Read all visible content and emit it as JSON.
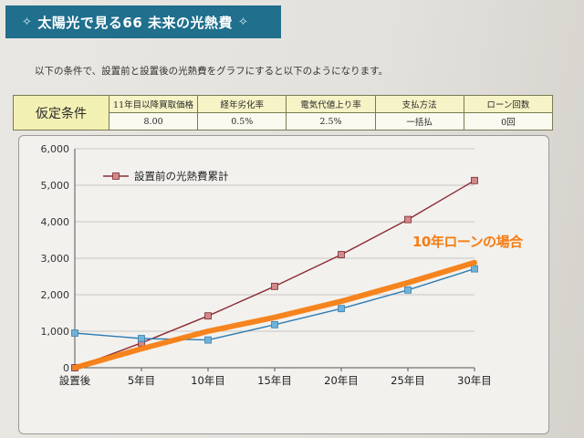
{
  "header": {
    "title": "太陽光で見る66 未来の光熱費",
    "left_ornament": "✧",
    "right_ornament": "✧"
  },
  "intro_text": "以下の条件で、設置前と設置後の光熱費をグラフにすると以下のようになります。",
  "conditions": {
    "label": "仮定条件",
    "headers": [
      "11年目以降買取価格",
      "経年劣化率",
      "電気代値上り率",
      "支払方法",
      "ローン回数"
    ],
    "values": [
      "8.00",
      "0.5%",
      "2.5%",
      "一括払",
      "0回"
    ]
  },
  "callout": "10年ローンの場合",
  "colors": {
    "header_bg": "#1f6f8d",
    "before_line": "#8c2a33",
    "before_marker": "#d3888a",
    "after_line": "#2f7db4",
    "after_marker": "#6fb3d8",
    "loan_line": "#f57d12",
    "cond_label_bg": "#f3f0b3"
  },
  "chart_data": {
    "type": "line",
    "categories": [
      "設置後",
      "5年目",
      "10年目",
      "15年目",
      "20年目",
      "25年目",
      "30年目"
    ],
    "ylim": [
      0,
      6000
    ],
    "yticks": [
      "0",
      "1,000",
      "2,000",
      "3,000",
      "4,000",
      "5,000",
      "6,000"
    ],
    "legend_label": "設置前の光熱費累計",
    "legend_position": "top-left",
    "grid": true,
    "series": [
      {
        "name": "設置前の光熱費累計",
        "values": [
          0,
          680,
          1420,
          2230,
          3100,
          4060,
          5130
        ]
      },
      {
        "values": [
          950,
          800,
          760,
          1180,
          1620,
          2130,
          2710
        ]
      },
      {
        "values": [
          0,
          520,
          1000,
          1380,
          1820,
          2330,
          2880
        ]
      }
    ]
  }
}
